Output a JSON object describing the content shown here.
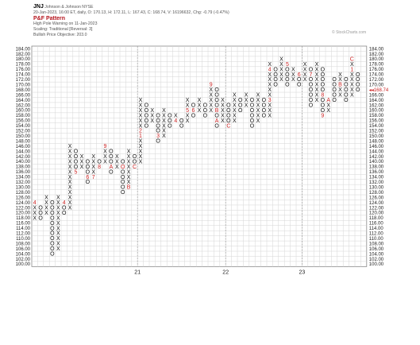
{
  "header": {
    "symbol": "JNJ",
    "company": "Johnson & Johnson NYSE",
    "quote": "20-Jan-2023, 16:00 ET, daily, O: 170.13, H: 172.11, L: 167.43, C: 168.74, V: 16196632, Chg: -0.79 (-0.47%)",
    "pattern_title": "P&F Pattern",
    "pattern_desc": "High Pole Warning on 11-Jan-2023",
    "scaling": "Scaling: Traditional [Reversal: 3]",
    "objective": "Bullish Price Objective: 203.0"
  },
  "watermark": "© StockCharts.com",
  "colors": {
    "x_mark": "#111111",
    "o_mark": "#111111",
    "month_mark": "#cc2222",
    "last_price": "#cc2222",
    "grid": "#d6d6d6",
    "axis_text": "#222222"
  },
  "chart_data": {
    "type": "point-and-figure",
    "box_size": 2,
    "reversal": 3,
    "ylim": [
      100,
      184
    ],
    "y_ticks": [
      "184.00",
      "182.00",
      "180.00",
      "178.00",
      "176.00",
      "174.00",
      "172.00",
      "170.00",
      "168.00",
      "166.00",
      "164.00",
      "162.00",
      "160.00",
      "158.00",
      "156.00",
      "154.00",
      "152.00",
      "150.00",
      "148.00",
      "146.00",
      "144.00",
      "142.00",
      "140.00",
      "138.00",
      "136.00",
      "134.00",
      "132.00",
      "130.00",
      "128.00",
      "126.00",
      "124.00",
      "122.00",
      "120.00",
      "118.00",
      "116.00",
      "114.00",
      "112.00",
      "110.00",
      "108.00",
      "106.00",
      "104.00",
      "102.00",
      "100.00"
    ],
    "x_labels": [
      {
        "col": 18,
        "text": "21"
      },
      {
        "col": 33,
        "text": "22"
      },
      {
        "col": 46,
        "text": "23"
      }
    ],
    "last_price_label": "168.74",
    "columns": [
      {
        "t": "X",
        "bottom": 118,
        "top": 124,
        "m": {
          "124": "4"
        }
      },
      {
        "t": "O",
        "bottom": 118,
        "top": 122
      },
      {
        "t": "X",
        "bottom": 120,
        "top": 126
      },
      {
        "t": "O",
        "bottom": 104,
        "top": 124
      },
      {
        "t": "X",
        "bottom": 106,
        "top": 126
      },
      {
        "t": "O",
        "bottom": 120,
        "top": 124,
        "m": {
          "124": "4"
        }
      },
      {
        "t": "X",
        "bottom": 122,
        "top": 146
      },
      {
        "t": "O",
        "bottom": 136,
        "top": 144,
        "m": {
          "136": "5"
        }
      },
      {
        "t": "X",
        "bottom": 138,
        "top": 142
      },
      {
        "t": "O",
        "bottom": 132,
        "top": 140,
        "m": {
          "134": "6"
        }
      },
      {
        "t": "X",
        "bottom": 134,
        "top": 142,
        "m": {
          "134": "7"
        }
      },
      {
        "t": "O",
        "bottom": 138,
        "top": 140,
        "m": {
          "138": "8"
        }
      },
      {
        "t": "X",
        "bottom": 140,
        "top": 146,
        "m": {
          "146": "9"
        }
      },
      {
        "t": "O",
        "bottom": 136,
        "top": 144,
        "m": {
          "138": "A"
        }
      },
      {
        "t": "X",
        "bottom": 138,
        "top": 142
      },
      {
        "t": "O",
        "bottom": 128,
        "top": 140,
        "m": {
          "138": "O"
        }
      },
      {
        "t": "X",
        "bottom": 130,
        "top": 144,
        "m": {
          "130": "B"
        }
      },
      {
        "t": "O",
        "bottom": 138,
        "top": 142,
        "m": {
          "138": "C"
        }
      },
      {
        "t": "X",
        "bottom": 140,
        "top": 164,
        "m": {
          "150": "1",
          "152": "2"
        }
      },
      {
        "t": "O",
        "bottom": 154,
        "top": 162
      },
      {
        "t": "X",
        "bottom": 156,
        "top": 160
      },
      {
        "t": "O",
        "bottom": 148,
        "top": 158,
        "m": {
          "150": "3"
        }
      },
      {
        "t": "X",
        "bottom": 150,
        "top": 160
      },
      {
        "t": "O",
        "bottom": 154,
        "top": 158
      },
      {
        "t": "X",
        "bottom": 156,
        "top": 158,
        "m": {
          "156": "4"
        }
      },
      {
        "t": "O",
        "bottom": 154,
        "top": 156
      },
      {
        "t": "X",
        "bottom": 156,
        "top": 164,
        "m": {
          "160": "5"
        }
      },
      {
        "t": "O",
        "bottom": 158,
        "top": 162,
        "m": {
          "160": "6"
        }
      },
      {
        "t": "X",
        "bottom": 160,
        "top": 164
      },
      {
        "t": "O",
        "bottom": 158,
        "top": 162
      },
      {
        "t": "X",
        "bottom": 160,
        "top": 170,
        "m": {
          "170": "9"
        }
      },
      {
        "t": "O",
        "bottom": 154,
        "top": 168,
        "m": {
          "156": "A",
          "160": "B"
        }
      },
      {
        "t": "X",
        "bottom": 156,
        "top": 164
      },
      {
        "t": "O",
        "bottom": 154,
        "top": 162,
        "m": {
          "154": "C"
        }
      },
      {
        "t": "X",
        "bottom": 156,
        "top": 166
      },
      {
        "t": "O",
        "bottom": 160,
        "top": 164
      },
      {
        "t": "X",
        "bottom": 162,
        "top": 166
      },
      {
        "t": "O",
        "bottom": 154,
        "top": 164,
        "m": {
          "166": "1"
        }
      },
      {
        "t": "X",
        "bottom": 156,
        "top": 166
      },
      {
        "t": "O",
        "bottom": 158,
        "top": 164,
        "m": {
          "166": "2"
        }
      },
      {
        "t": "X",
        "bottom": 158,
        "top": 178,
        "m": {
          "164": "3",
          "176": "4"
        }
      },
      {
        "t": "O",
        "bottom": 170,
        "top": 176
      },
      {
        "t": "X",
        "bottom": 172,
        "top": 180
      },
      {
        "t": "O",
        "bottom": 170,
        "top": 178,
        "m": {
          "178": "5"
        }
      },
      {
        "t": "X",
        "bottom": 172,
        "top": 176
      },
      {
        "t": "O",
        "bottom": 170,
        "top": 174,
        "m": {
          "174": "6"
        }
      },
      {
        "t": "X",
        "bottom": 172,
        "top": 178
      },
      {
        "t": "O",
        "bottom": 162,
        "top": 176,
        "m": {
          "174": "7"
        }
      },
      {
        "t": "X",
        "bottom": 164,
        "top": 178
      },
      {
        "t": "O",
        "bottom": 158,
        "top": 176,
        "m": {
          "166": "8",
          "158": "9"
        }
      },
      {
        "t": "X",
        "bottom": 160,
        "top": 164,
        "m": {
          "164": "A"
        }
      },
      {
        "t": "O",
        "bottom": 164,
        "top": 172
      },
      {
        "t": "X",
        "bottom": 166,
        "top": 174,
        "m": {
          "170": "B"
        }
      },
      {
        "t": "O",
        "bottom": 164,
        "top": 172
      },
      {
        "t": "X",
        "bottom": 166,
        "top": 180,
        "m": {
          "176": "1",
          "180": "C"
        }
      },
      {
        "t": "O",
        "bottom": 168,
        "top": 174
      }
    ]
  }
}
